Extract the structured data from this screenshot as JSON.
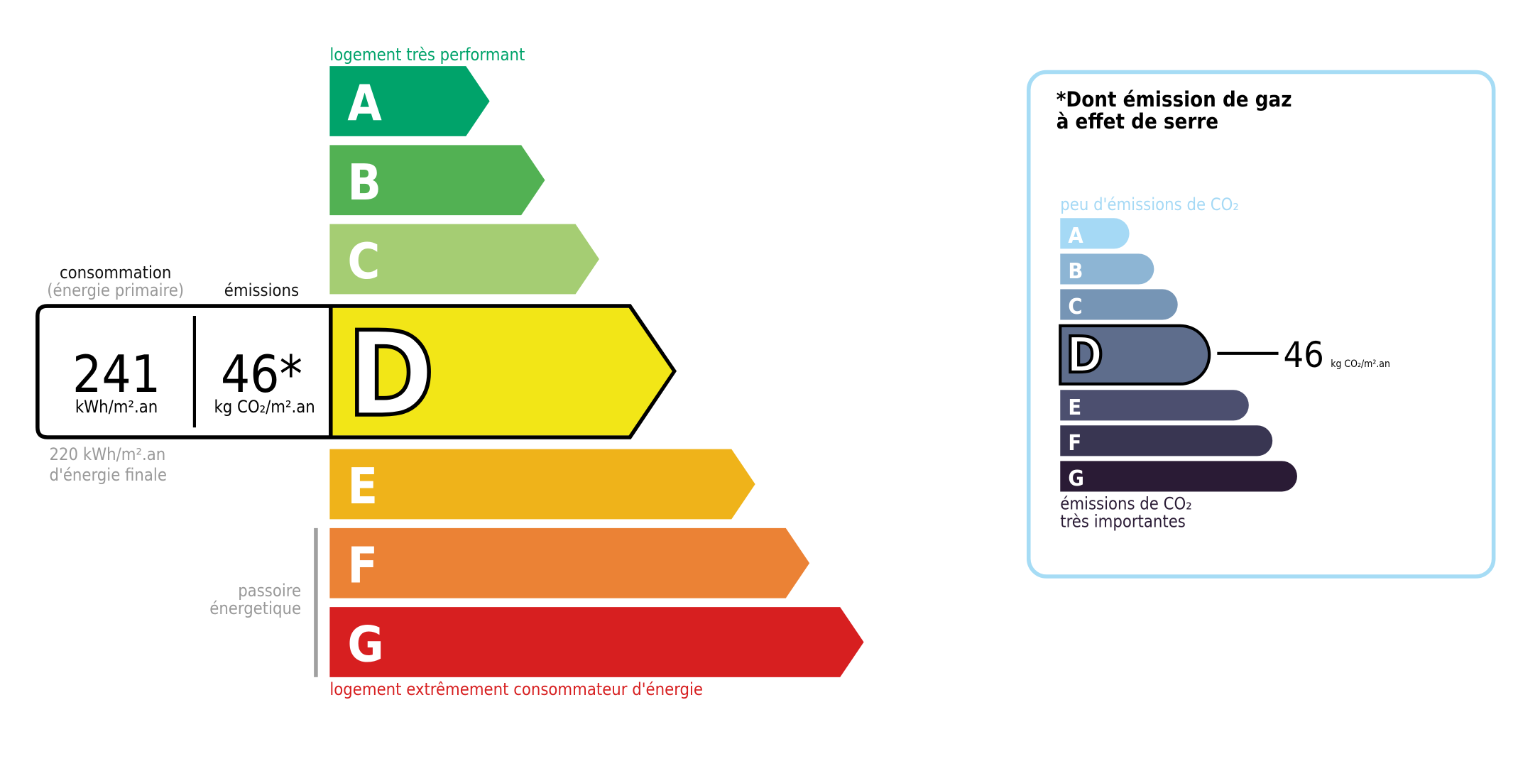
{
  "energy": {
    "top_label": "logement très performant",
    "bottom_label": "logement extrêmement consommateur d'énergie",
    "passoire_label": [
      "passoire",
      "énergetique"
    ],
    "classes": [
      {
        "letter": "A",
        "color": "#00a36a"
      },
      {
        "letter": "B",
        "color": "#52b153"
      },
      {
        "letter": "C",
        "color": "#a5cd73"
      },
      {
        "letter": "D",
        "color": "#f2e617"
      },
      {
        "letter": "E",
        "color": "#efb31a"
      },
      {
        "letter": "F",
        "color": "#eb8235"
      },
      {
        "letter": "G",
        "color": "#d71f20"
      }
    ],
    "current_class": "D",
    "consumption_header": "consommation",
    "consumption_subheader": "(énergie primaire)",
    "emissions_header": "émissions",
    "consumption_value": "241",
    "consumption_unit": "kWh/m².an",
    "emissions_value": "46*",
    "emissions_unit": "kg CO₂/m².an",
    "final_energy": [
      "220 kWh/m².an",
      "d'énergie finale"
    ]
  },
  "ghg": {
    "title": [
      "*Dont émission de gaz",
      "à effet de serre"
    ],
    "top_label": "peu d'émissions de CO₂",
    "bottom_label": [
      "émissions de CO₂",
      "très importantes"
    ],
    "classes": [
      {
        "letter": "A",
        "color": "#a5d9f5"
      },
      {
        "letter": "B",
        "color": "#8db5d4"
      },
      {
        "letter": "C",
        "color": "#7695b5"
      },
      {
        "letter": "D",
        "color": "#5e6d8c"
      },
      {
        "letter": "E",
        "color": "#4c4f6f"
      },
      {
        "letter": "F",
        "color": "#393652"
      },
      {
        "letter": "G",
        "color": "#2a1b35"
      }
    ],
    "current_class": "D",
    "value": "46",
    "unit": "kg CO₂/m².an",
    "border_color": "#a6dcf5"
  }
}
